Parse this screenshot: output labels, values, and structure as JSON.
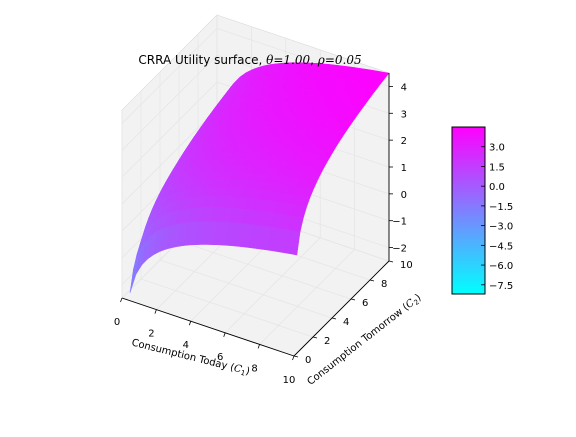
{
  "chart_data": {
    "type": "surface3d",
    "title": {
      "prefix": "CRRA Utility surface, ",
      "theta_symbol": "θ",
      "theta_value": "=1.00",
      "sep": ", ",
      "rho_symbol": "ρ",
      "rho_value": "=0.05"
    },
    "x_axis": {
      "label_text": "Consumption Today (",
      "label_var": "C",
      "label_sub": "1",
      "label_close": ")",
      "range": [
        0,
        10
      ],
      "ticks": [
        0,
        2,
        4,
        6,
        8,
        10
      ]
    },
    "y_axis": {
      "label_text": "Consumption Tomorrow (",
      "label_var": "C",
      "label_sub": "2",
      "label_close": ")",
      "range": [
        0,
        10
      ],
      "ticks": [
        0,
        2,
        4,
        6,
        8,
        10
      ]
    },
    "z_axis": {
      "range": [
        -2.5,
        4.5
      ],
      "ticks": [
        -2,
        -1,
        0,
        1,
        2,
        3,
        4
      ]
    },
    "function": {
      "theta": 1.0,
      "rho": 0.05,
      "formula": "log(C1) + log(C2)/(1+rho)"
    },
    "colormap": "cool",
    "colorbar": {
      "range": [
        -8.2,
        4.5
      ],
      "ticks": [
        "3.0",
        "1.5",
        "0.0",
        "−1.5",
        "−3.0",
        "−4.5",
        "−6.0",
        "−7.5"
      ],
      "tick_values": [
        3.0,
        1.5,
        0.0,
        -1.5,
        -3.0,
        -4.5,
        -6.0,
        -7.5
      ],
      "color_low": "#00ffff",
      "color_high": "#ff00ff"
    },
    "grid": true,
    "pane_color": "#f2f2f2"
  }
}
